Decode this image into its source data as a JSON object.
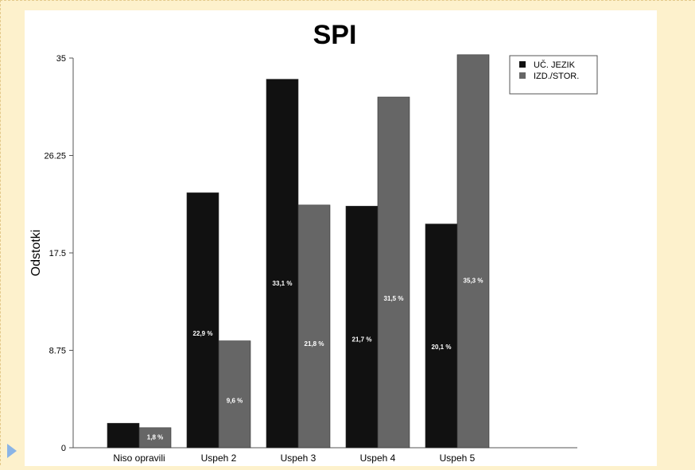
{
  "chart_data": {
    "type": "bar",
    "title": "SPI",
    "xlabel": "",
    "ylabel": "Odstotki",
    "ylim": [
      0,
      35
    ],
    "yticks": [
      "0",
      "8.75",
      "17.5",
      "26.25",
      "35"
    ],
    "categories": [
      "Niso opravili",
      "Uspeh 2",
      "Uspeh 3",
      "Uspeh 4",
      "Uspeh 5"
    ],
    "series": [
      {
        "name": "UČ. JEZIK",
        "color": "#111111",
        "values": [
          2.2,
          22.9,
          33.1,
          21.7,
          20.1
        ],
        "labels": [
          "",
          "22,9 %",
          "33,1 %",
          "21,7 %",
          "20,1 %"
        ]
      },
      {
        "name": "IZD./STOR.",
        "color": "#666666",
        "values": [
          1.8,
          9.6,
          21.8,
          31.5,
          35.3
        ],
        "labels": [
          "1,8 %",
          "9,6 %",
          "21,8 %",
          "31,5 %",
          "35,3 %"
        ]
      }
    ],
    "grid": false,
    "legend": "top-right"
  },
  "slide": {
    "play_icon": "play-triangle-icon"
  }
}
